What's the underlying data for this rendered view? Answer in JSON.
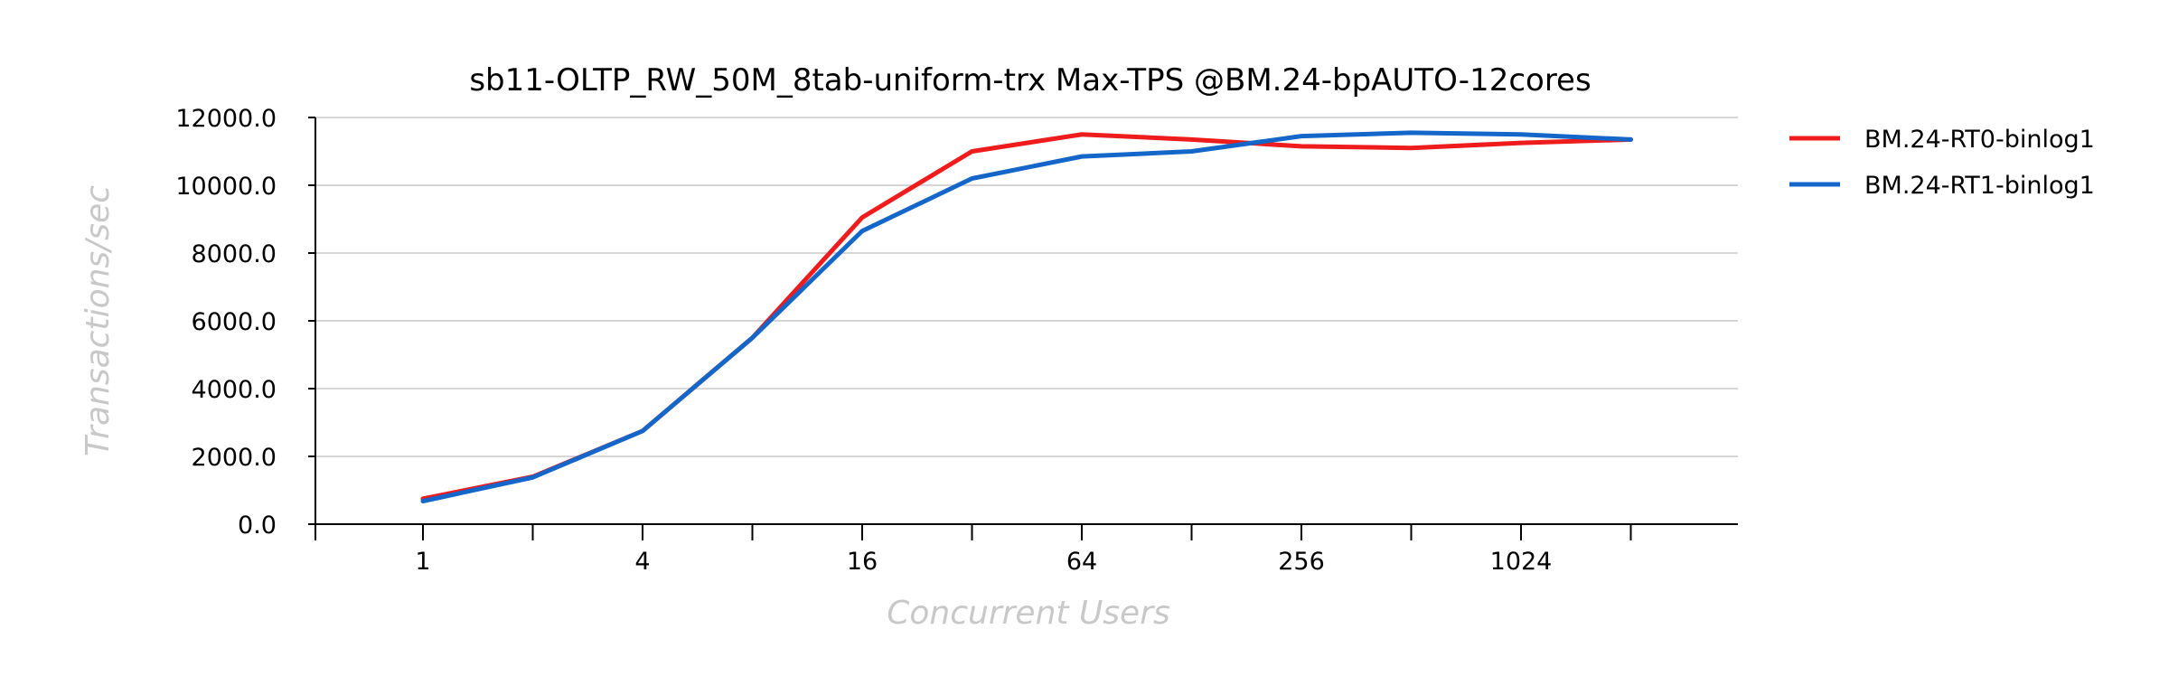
{
  "chart_data": {
    "type": "line",
    "title": "sb11-OLTP_RW_50M_8tab-uniform-trx Max-TPS @BM.24-bpAUTO-12cores",
    "xlabel": "Concurrent Users",
    "ylabel": "Transactions/sec",
    "x": [
      1,
      2,
      4,
      8,
      16,
      32,
      64,
      128,
      256,
      512,
      1024,
      2048
    ],
    "x_scale": "log2",
    "x_tick_labels": [
      "1",
      "4",
      "16",
      "64",
      "256",
      "1024"
    ],
    "y_tick_labels": [
      "0.0",
      "2000.0",
      "4000.0",
      "6000.0",
      "8000.0",
      "10000.0",
      "12000.0"
    ],
    "ylim": [
      0,
      12000
    ],
    "grid": true,
    "legend_position": "right",
    "series": [
      {
        "name": "BM.24-RT0-binlog1",
        "color": "#ee1c1c",
        "values": [
          750,
          1400,
          2750,
          5500,
          9050,
          11000,
          11500,
          11350,
          11150,
          11100,
          11250,
          11350
        ]
      },
      {
        "name": "BM.24-RT1-binlog1",
        "color": "#1466c8",
        "values": [
          680,
          1380,
          2750,
          5500,
          8650,
          10200,
          10850,
          11000,
          11450,
          11550,
          11500,
          11350
        ]
      }
    ]
  }
}
